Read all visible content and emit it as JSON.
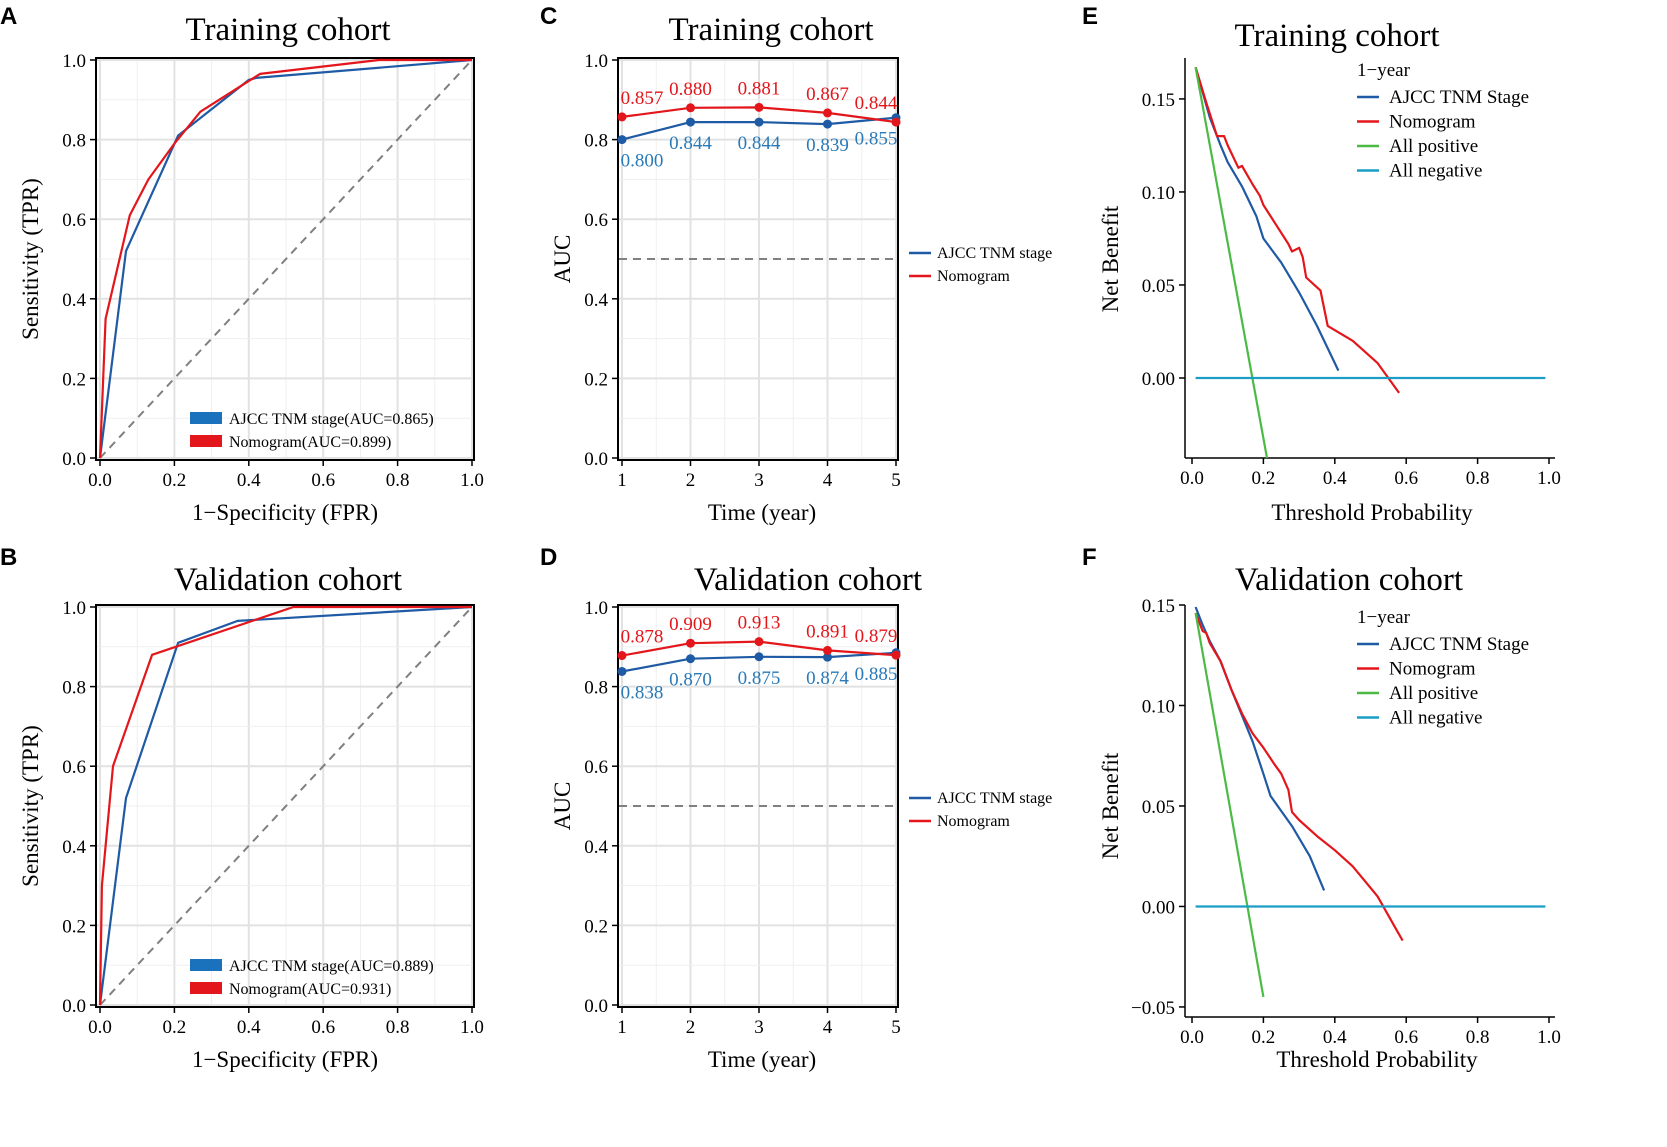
{
  "colors": {
    "blue": "#1f5aa5",
    "red": "#e3161b",
    "green": "#4bbb46",
    "teal": "#1a9dc7",
    "gray": "#808080",
    "roc_legend_blue": "#1a72bc"
  },
  "panel_letters": [
    "A",
    "B",
    "C",
    "D",
    "E",
    "F"
  ],
  "chart_data": [
    {
      "panel": "A",
      "type": "line",
      "title": "Training cohort",
      "xlabel": "1−Specificity (FPR)",
      "ylabel": "Sensitivity (TPR)",
      "xlim": [
        0,
        1
      ],
      "ylim": [
        0,
        1
      ],
      "xticks": [
        0,
        0.2,
        0.4,
        0.6,
        0.8,
        1
      ],
      "xtick_labels": [
        "0.0",
        "0.2",
        "0.4",
        "0.6",
        "0.8",
        "1.0"
      ],
      "yticks": [
        0,
        0.2,
        0.4,
        0.6,
        0.8,
        1
      ],
      "ytick_labels": [
        "0.0",
        "0.2",
        "0.4",
        "0.6",
        "0.8",
        "1.0"
      ],
      "grid": true,
      "reference_line": true,
      "legend_position": "bottom-right",
      "series": [
        {
          "name": "AJCC TNM stage(AUC=0.865)",
          "color": "blue",
          "x": [
            0,
            0.07,
            0.21,
            0.4,
            0.42,
            1
          ],
          "y": [
            0,
            0.52,
            0.81,
            0.95,
            0.955,
            1
          ]
        },
        {
          "name": "Nomogram(AUC=0.899)",
          "color": "red",
          "x": [
            0,
            0.015,
            0.08,
            0.13,
            0.2,
            0.27,
            0.43,
            0.75,
            1
          ],
          "y": [
            0,
            0.35,
            0.61,
            0.7,
            0.79,
            0.87,
            0.965,
            1,
            1
          ]
        }
      ]
    },
    {
      "panel": "B",
      "type": "line",
      "title": "Validation cohort",
      "xlabel": "1−Specificity (FPR)",
      "ylabel": "Sensitivity (TPR)",
      "xlim": [
        0,
        1
      ],
      "ylim": [
        0,
        1
      ],
      "xticks": [
        0,
        0.2,
        0.4,
        0.6,
        0.8,
        1
      ],
      "xtick_labels": [
        "0.0",
        "0.2",
        "0.4",
        "0.6",
        "0.8",
        "1.0"
      ],
      "yticks": [
        0,
        0.2,
        0.4,
        0.6,
        0.8,
        1
      ],
      "ytick_labels": [
        "0.0",
        "0.2",
        "0.4",
        "0.6",
        "0.8",
        "1.0"
      ],
      "grid": true,
      "reference_line": true,
      "legend_position": "bottom-right",
      "series": [
        {
          "name": "AJCC TNM stage(AUC=0.889)",
          "color": "blue",
          "x": [
            0,
            0.07,
            0.21,
            0.37,
            1
          ],
          "y": [
            0,
            0.52,
            0.91,
            0.965,
            1
          ]
        },
        {
          "name": "Nomogram(AUC=0.931)",
          "color": "red",
          "x": [
            0,
            0.005,
            0.035,
            0.14,
            0.52,
            1
          ],
          "y": [
            0,
            0.3,
            0.6,
            0.88,
            1,
            1
          ]
        }
      ]
    },
    {
      "panel": "C",
      "type": "line",
      "title": "Training cohort",
      "xlabel": "Time (year)",
      "ylabel": "AUC",
      "xlim": [
        1,
        5
      ],
      "ylim": [
        0,
        1
      ],
      "xticks": [
        1,
        2,
        3,
        4,
        5
      ],
      "xtick_labels": [
        "1",
        "2",
        "3",
        "4",
        "5"
      ],
      "yticks": [
        0,
        0.2,
        0.4,
        0.6,
        0.8,
        1
      ],
      "ytick_labels": [
        "0.0",
        "0.2",
        "0.4",
        "0.6",
        "0.8",
        "1.0"
      ],
      "grid": true,
      "reference_value": 0.5,
      "legend_position": "right-middle",
      "x": [
        1,
        2,
        3,
        4,
        5
      ],
      "series": [
        {
          "name": "AJCC TNM stage",
          "color": "blue",
          "values": [
            0.8,
            0.844,
            0.844,
            0.839,
            0.855
          ],
          "labels": [
            "0.800",
            "0.844",
            "0.844",
            "0.839",
            "0.855"
          ]
        },
        {
          "name": "Nomogram",
          "color": "red",
          "values": [
            0.857,
            0.88,
            0.881,
            0.867,
            0.844
          ],
          "labels": [
            "0.857",
            "0.880",
            "0.881",
            "0.867",
            "0.844"
          ]
        }
      ]
    },
    {
      "panel": "D",
      "type": "line",
      "title": "Validation cohort",
      "xlabel": "Time (year)",
      "ylabel": "AUC",
      "xlim": [
        1,
        5
      ],
      "ylim": [
        0,
        1
      ],
      "xticks": [
        1,
        2,
        3,
        4,
        5
      ],
      "xtick_labels": [
        "1",
        "2",
        "3",
        "4",
        "5"
      ],
      "yticks": [
        0,
        0.2,
        0.4,
        0.6,
        0.8,
        1
      ],
      "ytick_labels": [
        "0.0",
        "0.2",
        "0.4",
        "0.6",
        "0.8",
        "1.0"
      ],
      "grid": true,
      "reference_value": 0.5,
      "legend_position": "right-middle",
      "x": [
        1,
        2,
        3,
        4,
        5
      ],
      "series": [
        {
          "name": "AJCC TNM stage",
          "color": "blue",
          "values": [
            0.838,
            0.87,
            0.875,
            0.874,
            0.885
          ],
          "labels": [
            "0.838",
            "0.870",
            "0.875",
            "0.874",
            "0.885"
          ]
        },
        {
          "name": "Nomogram",
          "color": "red",
          "values": [
            0.878,
            0.909,
            0.913,
            0.891,
            0.879
          ],
          "labels": [
            "0.878",
            "0.909",
            "0.913",
            "0.891",
            "0.879"
          ]
        }
      ]
    },
    {
      "panel": "E",
      "type": "line",
      "title": "Training cohort",
      "xlabel": "Threshold Probability",
      "ylabel": "Net Benefit",
      "xlim": [
        0,
        1
      ],
      "ylim": [
        -0.043,
        0.172
      ],
      "xticks": [
        0,
        0.2,
        0.4,
        0.6,
        0.8,
        1
      ],
      "xtick_labels": [
        "0.0",
        "0.2",
        "0.4",
        "0.6",
        "0.8",
        "1.0"
      ],
      "yticks": [
        0,
        0.05,
        0.1,
        0.15
      ],
      "ytick_labels": [
        "0.00",
        "0.05",
        "0.10",
        "0.15"
      ],
      "grid": false,
      "legend_title": "1−year",
      "legend_position": "top-right",
      "series": [
        {
          "name": "AJCC TNM Stage",
          "color": "blue",
          "x": [
            0.01,
            0.05,
            0.08,
            0.1,
            0.14,
            0.18,
            0.2,
            0.25,
            0.3,
            0.35,
            0.41
          ],
          "y": [
            0.167,
            0.14,
            0.125,
            0.116,
            0.103,
            0.087,
            0.075,
            0.062,
            0.046,
            0.028,
            0.004
          ]
        },
        {
          "name": "Nomogram",
          "color": "red",
          "x": [
            0.01,
            0.04,
            0.07,
            0.09,
            0.1,
            0.13,
            0.14,
            0.17,
            0.19,
            0.2,
            0.24,
            0.27,
            0.28,
            0.3,
            0.31,
            0.32,
            0.36,
            0.38,
            0.45,
            0.52,
            0.58
          ],
          "y": [
            0.167,
            0.148,
            0.13,
            0.13,
            0.125,
            0.113,
            0.114,
            0.104,
            0.098,
            0.093,
            0.081,
            0.072,
            0.068,
            0.07,
            0.065,
            0.054,
            0.047,
            0.028,
            0.02,
            0.008,
            -0.008
          ]
        },
        {
          "name": "All positive",
          "color": "green",
          "x": [
            0.01,
            0.21
          ],
          "y": [
            0.167,
            -0.043
          ]
        },
        {
          "name": "All negative",
          "color": "teal",
          "x": [
            0.01,
            0.99
          ],
          "y": [
            0,
            0
          ]
        }
      ]
    },
    {
      "panel": "F",
      "type": "line",
      "title": "Validation cohort",
      "xlabel": "Threshold Probability",
      "ylabel": "Net Benefit",
      "xlim": [
        0,
        1
      ],
      "ylim": [
        -0.055,
        0.15
      ],
      "xticks": [
        0,
        0.2,
        0.4,
        0.6,
        0.8,
        1
      ],
      "xtick_labels": [
        "0.0",
        "0.2",
        "0.4",
        "0.6",
        "0.8",
        "1.0"
      ],
      "yticks": [
        -0.05,
        0,
        0.05,
        0.1,
        0.15
      ],
      "ytick_labels": [
        "−0.05",
        "0.00",
        "0.05",
        "0.10",
        "0.15"
      ],
      "grid": false,
      "legend_title": "1−year",
      "legend_position": "top-right",
      "series": [
        {
          "name": "AJCC TNM Stage",
          "color": "blue",
          "x": [
            0.01,
            0.03,
            0.05,
            0.08,
            0.11,
            0.14,
            0.17,
            0.2,
            0.22,
            0.28,
            0.33,
            0.37
          ],
          "y": [
            0.149,
            0.14,
            0.132,
            0.122,
            0.108,
            0.095,
            0.082,
            0.066,
            0.055,
            0.04,
            0.025,
            0.008
          ]
        },
        {
          "name": "Nomogram",
          "color": "red",
          "x": [
            0.01,
            0.03,
            0.04,
            0.05,
            0.06,
            0.08,
            0.11,
            0.14,
            0.17,
            0.2,
            0.23,
            0.25,
            0.27,
            0.28,
            0.3,
            0.35,
            0.4,
            0.45,
            0.52,
            0.59
          ],
          "y": [
            0.146,
            0.137,
            0.136,
            0.131,
            0.128,
            0.122,
            0.108,
            0.096,
            0.086,
            0.079,
            0.071,
            0.066,
            0.058,
            0.047,
            0.043,
            0.035,
            0.028,
            0.02,
            0.005,
            -0.017
          ]
        },
        {
          "name": "All positive",
          "color": "green",
          "x": [
            0.01,
            0.2
          ],
          "y": [
            0.146,
            -0.045
          ]
        },
        {
          "name": "All negative",
          "color": "teal",
          "x": [
            0.01,
            0.99
          ],
          "y": [
            0,
            0
          ]
        }
      ]
    }
  ]
}
